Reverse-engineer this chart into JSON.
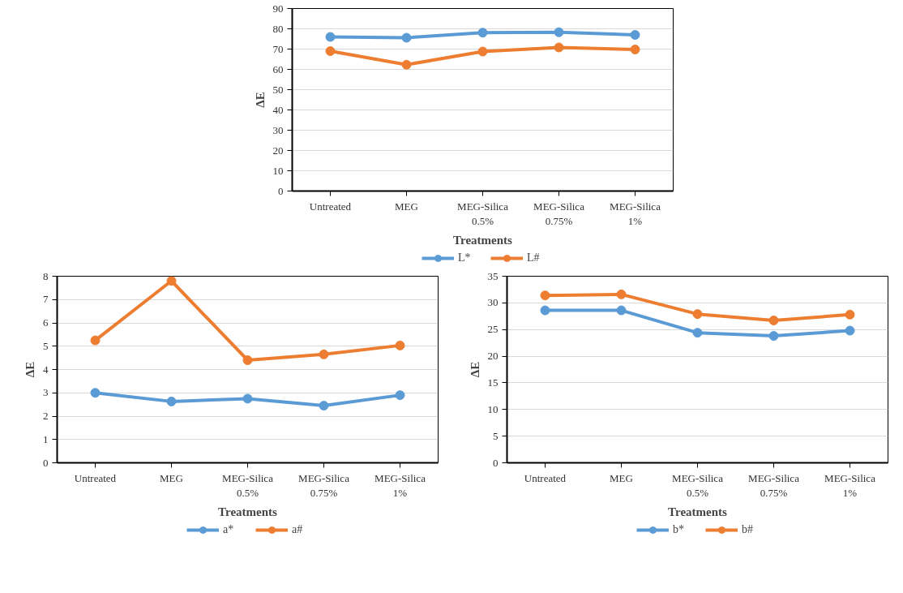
{
  "chart_data": [
    {
      "type": "line",
      "xlabel": "Treatments",
      "ylabel": "ΔE",
      "categories": [
        "Untreated",
        "MEG",
        "MEG-Silica\n0.5%",
        "MEG-Silica\n0.75%",
        "MEG-Silica\n1%"
      ],
      "ylim": [
        0,
        90
      ],
      "yticks": [
        0,
        10,
        20,
        30,
        40,
        50,
        60,
        70,
        80,
        90
      ],
      "grid": "y",
      "legend": "bottom",
      "marker": "circle",
      "line_style": "solid",
      "series": [
        {
          "name": "L*",
          "color": "#5b9bd5",
          "values": [
            76.0,
            75.6,
            78.1,
            78.3,
            77.0
          ]
        },
        {
          "name": "L#",
          "color": "#ed7d31",
          "values": [
            69.0,
            62.3,
            68.8,
            70.8,
            69.8
          ]
        }
      ]
    },
    {
      "type": "line",
      "xlabel": "Treatments",
      "ylabel": "ΔE",
      "categories": [
        "Untreated",
        "MEG",
        "MEG-Silica\n0.5%",
        "MEG-Silica\n0.75%",
        "MEG-Silica\n1%"
      ],
      "ylim": [
        0,
        8
      ],
      "yticks": [
        0,
        1,
        2,
        3,
        4,
        5,
        6,
        7,
        8
      ],
      "grid": "y",
      "legend": "bottom",
      "marker": "circle",
      "line_style": "solid",
      "series": [
        {
          "name": "a*",
          "color": "#5b9bd5",
          "values": [
            3.0,
            2.63,
            2.75,
            2.45,
            2.9
          ]
        },
        {
          "name": "a#",
          "color": "#ed7d31",
          "values": [
            5.25,
            7.8,
            4.4,
            4.65,
            5.03
          ]
        }
      ]
    },
    {
      "type": "line",
      "xlabel": "Treatments",
      "ylabel": "ΔE",
      "categories": [
        "Untreated",
        "MEG",
        "MEG-Silica\n0.5%",
        "MEG-Silica\n0.75%",
        "MEG-Silica\n1%"
      ],
      "ylim": [
        0,
        35
      ],
      "yticks": [
        0,
        5,
        10,
        15,
        20,
        25,
        30,
        35
      ],
      "grid": "y",
      "legend": "bottom",
      "marker": "circle",
      "line_style": "solid",
      "series": [
        {
          "name": "b*",
          "color": "#5b9bd5",
          "values": [
            28.6,
            28.6,
            24.4,
            23.8,
            24.8
          ]
        },
        {
          "name": "b#",
          "color": "#ed7d31",
          "values": [
            31.4,
            31.6,
            27.9,
            26.7,
            27.8
          ]
        }
      ]
    }
  ]
}
